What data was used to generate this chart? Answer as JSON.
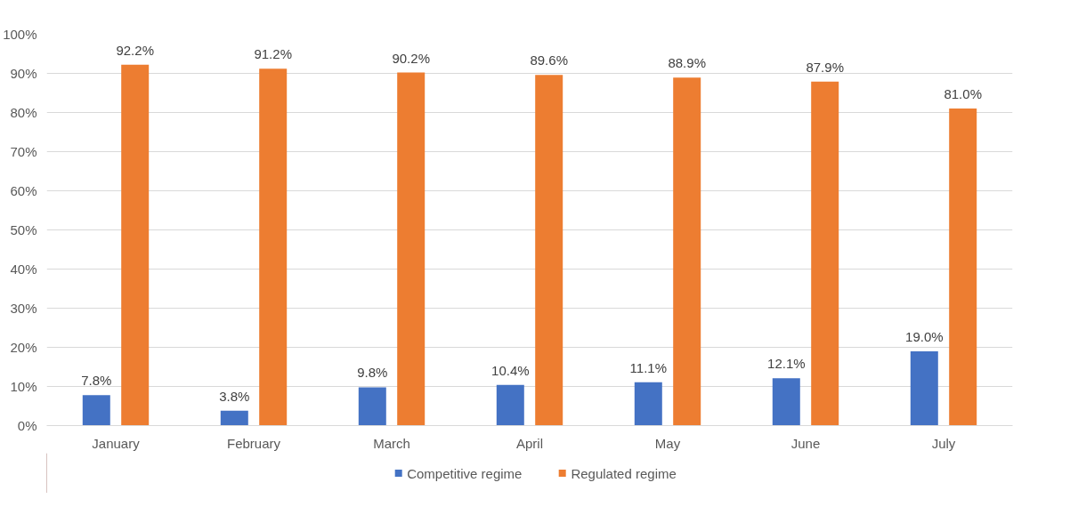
{
  "chart_data": {
    "type": "bar",
    "categories": [
      "January",
      "February",
      "March",
      "April",
      "May",
      "June",
      "July"
    ],
    "series": [
      {
        "name": "Competitive regime",
        "color": "#4472c4",
        "values": [
          7.8,
          3.8,
          9.8,
          10.4,
          11.1,
          12.1,
          19.0
        ],
        "value_labels": [
          "7.8%",
          "3.8%",
          "9.8%",
          "10.4%",
          "11.1%",
          "12.1%",
          "19.0%"
        ]
      },
      {
        "name": "Regulated regime",
        "color": "#ed7d31",
        "values": [
          92.2,
          91.2,
          90.2,
          89.6,
          88.9,
          87.9,
          81.0
        ],
        "value_labels": [
          "92.2%",
          "91.2%",
          "90.2%",
          "89.6%",
          "88.9%",
          "87.9%",
          "81.0%"
        ]
      }
    ],
    "ylim": [
      0,
      100
    ],
    "yticks": [
      {
        "value": 0,
        "label": "0%"
      },
      {
        "value": 10,
        "label": "10%"
      },
      {
        "value": 20,
        "label": "20%"
      },
      {
        "value": 30,
        "label": "30%"
      },
      {
        "value": 40,
        "label": "40%"
      },
      {
        "value": 50,
        "label": "50%"
      },
      {
        "value": 60,
        "label": "60%"
      },
      {
        "value": 70,
        "label": "70%"
      },
      {
        "value": 80,
        "label": "80%"
      },
      {
        "value": 90,
        "label": "90%"
      },
      {
        "value": 100,
        "label": "100%"
      }
    ],
    "grid": "y",
    "legend": "bottom"
  }
}
